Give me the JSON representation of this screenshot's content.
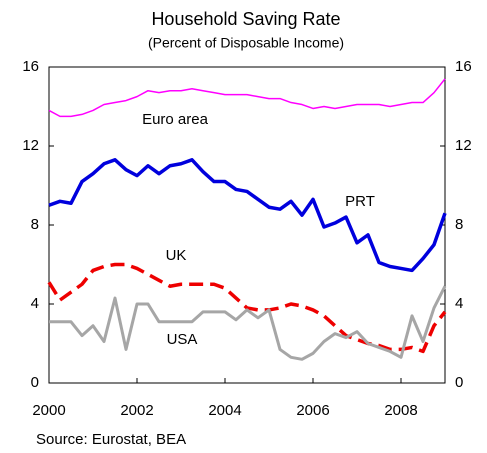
{
  "chart_data": {
    "type": "line",
    "title": "Household Saving Rate",
    "subtitle": "(Percent of Disposable Income)",
    "source": "Source: Eurostat, BEA",
    "x": [
      2000,
      2000.25,
      2000.5,
      2000.75,
      2001,
      2001.25,
      2001.5,
      2001.75,
      2002,
      2002.25,
      2002.5,
      2002.75,
      2003,
      2003.25,
      2003.5,
      2003.75,
      2004,
      2004.25,
      2004.5,
      2004.75,
      2005,
      2005.25,
      2005.5,
      2005.75,
      2006,
      2006.25,
      2006.5,
      2006.75,
      2007,
      2007.25,
      2007.5,
      2007.75,
      2008,
      2008.25,
      2008.5,
      2008.75,
      2009
    ],
    "series": [
      {
        "name": "Euro area",
        "color": "#ff00ff",
        "width": 1.5,
        "dashed": false,
        "values": [
          13.8,
          13.5,
          13.5,
          13.6,
          13.8,
          14.1,
          14.2,
          14.3,
          14.5,
          14.8,
          14.7,
          14.8,
          14.8,
          14.9,
          14.8,
          14.7,
          14.6,
          14.6,
          14.6,
          14.5,
          14.4,
          14.4,
          14.2,
          14.1,
          13.9,
          14.0,
          13.9,
          14.0,
          14.1,
          14.1,
          14.1,
          14.0,
          14.1,
          14.2,
          14.2,
          14.7,
          15.4
        ]
      },
      {
        "name": "PRT",
        "color": "#0000dd",
        "width": 3.5,
        "dashed": false,
        "values": [
          9.0,
          9.2,
          9.1,
          10.2,
          10.6,
          11.1,
          11.3,
          10.8,
          10.5,
          11.0,
          10.6,
          11.0,
          11.1,
          11.3,
          10.7,
          10.2,
          10.2,
          9.8,
          9.7,
          9.3,
          8.9,
          8.8,
          9.2,
          8.5,
          9.3,
          7.9,
          8.1,
          8.4,
          7.1,
          7.5,
          6.1,
          5.9,
          5.8,
          5.7,
          6.3,
          7.0,
          8.6
        ]
      },
      {
        "name": "UK",
        "color": "#ee0000",
        "width": 3.5,
        "dashed": true,
        "values": [
          5.1,
          4.2,
          4.6,
          5.0,
          5.7,
          5.9,
          6.0,
          6.0,
          5.8,
          5.5,
          5.2,
          4.9,
          5.0,
          5.0,
          5.0,
          5.0,
          4.8,
          4.3,
          3.8,
          3.7,
          3.7,
          3.8,
          4.0,
          3.9,
          3.7,
          3.4,
          2.9,
          2.4,
          2.2,
          2.0,
          1.9,
          1.7,
          1.7,
          1.8,
          1.6,
          2.9,
          3.6
        ]
      },
      {
        "name": "USA",
        "color": "#a6a6a6",
        "width": 3,
        "dashed": false,
        "values": [
          3.1,
          3.1,
          3.1,
          2.4,
          2.9,
          2.1,
          4.3,
          1.7,
          4.0,
          4.0,
          3.1,
          3.1,
          3.1,
          3.1,
          3.6,
          3.6,
          3.6,
          3.2,
          3.7,
          3.3,
          3.7,
          1.7,
          1.3,
          1.2,
          1.5,
          2.1,
          2.5,
          2.3,
          2.6,
          2.0,
          1.8,
          1.6,
          1.3,
          3.4,
          2.1,
          3.8,
          4.9
        ]
      }
    ],
    "xlim": [
      2000,
      2009
    ],
    "xticks": [
      2000,
      2002,
      2004,
      2006,
      2008
    ],
    "ylim": [
      0,
      16
    ],
    "yticks": [
      0,
      4,
      8,
      12,
      16
    ],
    "y2lim": [
      0,
      16
    ],
    "y2ticks": [
      0,
      4,
      8,
      12,
      16
    ],
    "grid": false
  }
}
